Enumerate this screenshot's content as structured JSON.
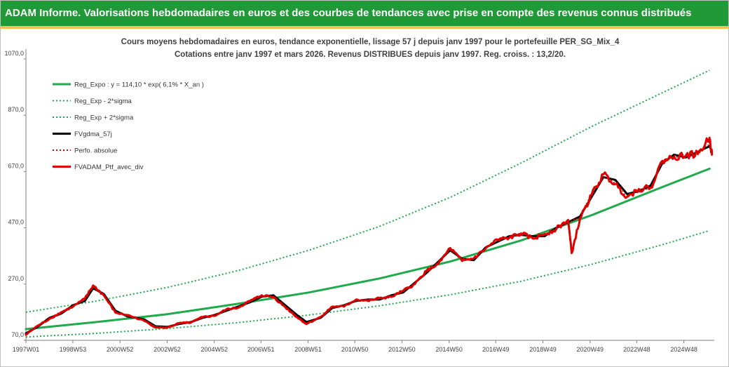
{
  "header": {
    "title": "ADAM Informe. Valorisations hebdomadaires en euros et des courbes de tendances avec prise en compte des revenus connus distribués"
  },
  "chart_data": {
    "type": "line",
    "title_line1": "Cours moyens hebdomadaires  en euros, tendance exponentielle, lissage 57 j depuis janv 1997 pour le portefeuille PER_SG_Mix_4",
    "title_line2": "Cotations  entre janv 1997 et mars 2026. Revenus DISTRIBUES depuis janv 1997. Reg. croiss. : 13,2/20.",
    "xlabel": "",
    "ylabel": "",
    "ylim": [
      70,
      1090
    ],
    "xlim": [
      1997.0,
      2026.2
    ],
    "y_ticks": [
      "70,0",
      "270,0",
      "470,0",
      "670,0",
      "870,0",
      "1070,0"
    ],
    "x_ticks": [
      {
        "label": "1997W01",
        "x": 1997.0
      },
      {
        "label": "1998W53",
        "x": 1998.99
      },
      {
        "label": "2000W52",
        "x": 2000.99
      },
      {
        "label": "2002W52",
        "x": 2002.99
      },
      {
        "label": "2004W52",
        "x": 2004.99
      },
      {
        "label": "2006W51",
        "x": 2006.97
      },
      {
        "label": "2008W51",
        "x": 2008.97
      },
      {
        "label": "2010W50",
        "x": 2010.95
      },
      {
        "label": "2012W50",
        "x": 2012.95
      },
      {
        "label": "2014W50",
        "x": 2014.95
      },
      {
        "label": "2016W49",
        "x": 2016.93
      },
      {
        "label": "2018W49",
        "x": 2018.93
      },
      {
        "label": "2020W49",
        "x": 2020.93
      },
      {
        "label": "2022W48",
        "x": 2022.91
      },
      {
        "label": "2024W48",
        "x": 2024.91
      }
    ],
    "legend_position": "top-left",
    "grid": false,
    "series": [
      {
        "name": "Reg_Expo : y = 114,10 * exp( 6,1% *  X_an )",
        "color": "#1faa4b",
        "style": "solid",
        "width": 3,
        "x": [
          1997.0,
          2000.0,
          2003.0,
          2006.0,
          2009.0,
          2012.0,
          2015.0,
          2018.0,
          2021.0,
          2024.0,
          2026.0
        ],
        "values": [
          110,
          135,
          163,
          200,
          240,
          290,
          350,
          425,
          515,
          615,
          680
        ]
      },
      {
        "name": "Reg_Exp - 2*sigma",
        "color": "#1faa4b",
        "style": "dotted",
        "width": 2,
        "x": [
          1997.0,
          2000.0,
          2003.0,
          2006.0,
          2009.0,
          2012.0,
          2015.0,
          2018.0,
          2021.0,
          2024.0,
          2026.0
        ],
        "values": [
          82,
          95,
          112,
          133,
          160,
          193,
          232,
          280,
          340,
          410,
          460
        ]
      },
      {
        "name": "Reg_Exp + 2*sigma",
        "color": "#1faa4b",
        "style": "dotted",
        "width": 2,
        "x": [
          1997.0,
          2000.0,
          2003.0,
          2006.0,
          2009.0,
          2012.0,
          2015.0,
          2018.0,
          2021.0,
          2024.0,
          2026.0
        ],
        "values": [
          170,
          210,
          258,
          318,
          390,
          475,
          578,
          700,
          830,
          950,
          1030
        ]
      },
      {
        "name": "FVgdma_57j",
        "color": "#000000",
        "style": "solid",
        "width": 3,
        "x": [
          1997.0,
          1997.5,
          1998.0,
          1998.5,
          1999.0,
          1999.5,
          1999.85,
          2000.3,
          2000.8,
          2001.3,
          2002.0,
          2002.5,
          2003.0,
          2003.5,
          2004.0,
          2004.5,
          2005.0,
          2005.5,
          2006.0,
          2006.5,
          2007.0,
          2007.5,
          2008.0,
          2008.5,
          2008.9,
          2009.5,
          2010.0,
          2010.5,
          2011.0,
          2011.5,
          2012.0,
          2012.5,
          2013.0,
          2013.5,
          2014.0,
          2014.5,
          2015.0,
          2015.5,
          2016.0,
          2016.5,
          2017.0,
          2017.5,
          2018.0,
          2018.5,
          2019.0,
          2019.5,
          2020.0,
          2020.5,
          2021.0,
          2021.5,
          2022.0,
          2022.5,
          2023.0,
          2023.5,
          2024.0,
          2024.5,
          2025.0,
          2025.5,
          2026.0,
          2026.1
        ],
        "values": [
          95,
          118,
          150,
          165,
          195,
          210,
          255,
          235,
          175,
          155,
          145,
          120,
          118,
          128,
          135,
          150,
          160,
          175,
          190,
          205,
          225,
          230,
          195,
          160,
          135,
          150,
          185,
          195,
          210,
          215,
          215,
          230,
          240,
          275,
          310,
          350,
          390,
          360,
          355,
          400,
          420,
          440,
          445,
          440,
          440,
          470,
          490,
          510,
          580,
          650,
          640,
          590,
          600,
          620,
          700,
          730,
          720,
          740,
          760,
          740
        ]
      },
      {
        "name": "Perfo. absolue",
        "color": "#e00000",
        "style": "dotted",
        "width": 2,
        "x": [
          1997.0,
          1997.5,
          1998.0,
          1998.5,
          1999.0,
          1999.5,
          1999.85,
          2000.3,
          2000.8,
          2001.3,
          2002.0,
          2002.5,
          2003.0,
          2003.5,
          2004.0,
          2004.5,
          2005.0,
          2005.5,
          2006.0,
          2006.5,
          2007.0,
          2007.5,
          2008.0,
          2008.5,
          2008.9,
          2009.5,
          2010.0,
          2010.5,
          2011.0,
          2011.5,
          2012.0,
          2012.5,
          2013.0,
          2013.5,
          2014.0,
          2014.5,
          2015.0,
          2015.5,
          2016.0,
          2016.5,
          2017.0,
          2017.5,
          2018.0,
          2018.5,
          2019.0,
          2019.5,
          2020.0,
          2020.5,
          2021.0,
          2021.5,
          2022.0,
          2022.5,
          2023.0,
          2023.5,
          2024.0,
          2024.5,
          2025.0,
          2025.5,
          2026.0,
          2026.1
        ],
        "values": [
          92,
          120,
          148,
          168,
          192,
          215,
          262,
          232,
          170,
          158,
          142,
          118,
          116,
          130,
          134,
          152,
          158,
          178,
          188,
          208,
          228,
          226,
          190,
          155,
          130,
          152,
          188,
          192,
          213,
          212,
          218,
          226,
          244,
          272,
          315,
          345,
          395,
          355,
          360,
          398,
          425,
          436,
          448,
          436,
          445,
          468,
          495,
          505,
          585,
          655,
          630,
          585,
          605,
          615,
          705,
          725,
          725,
          735,
          775,
          735
        ]
      },
      {
        "name": "FVADAM_Ptf_avec_div",
        "color": "#e00000",
        "style": "solid",
        "width": 3,
        "x": [
          1997.0,
          1997.5,
          1998.0,
          1998.5,
          1999.0,
          1999.5,
          1999.85,
          2000.3,
          2000.8,
          2001.3,
          2002.0,
          2002.5,
          2003.0,
          2003.5,
          2004.0,
          2004.5,
          2005.0,
          2005.5,
          2006.0,
          2006.5,
          2007.0,
          2007.5,
          2008.0,
          2008.5,
          2008.9,
          2009.5,
          2010.0,
          2010.5,
          2011.0,
          2011.5,
          2012.0,
          2012.5,
          2013.0,
          2013.5,
          2014.0,
          2014.5,
          2015.0,
          2015.5,
          2016.0,
          2016.5,
          2017.0,
          2017.5,
          2018.0,
          2018.5,
          2019.0,
          2019.5,
          2020.0,
          2020.15,
          2020.5,
          2021.0,
          2021.5,
          2022.0,
          2022.5,
          2023.0,
          2023.5,
          2024.0,
          2024.5,
          2025.0,
          2025.5,
          2026.0,
          2026.1
        ],
        "values": [
          90,
          122,
          146,
          170,
          190,
          218,
          265,
          230,
          168,
          160,
          140,
          116,
          115,
          131,
          133,
          153,
          157,
          180,
          186,
          210,
          230,
          224,
          188,
          152,
          128,
          153,
          190,
          190,
          215,
          210,
          220,
          224,
          246,
          270,
          318,
          342,
          398,
          352,
          362,
          396,
          428,
          434,
          450,
          432,
          448,
          466,
          498,
          380,
          500,
          588,
          660,
          625,
          580,
          608,
          612,
          708,
          722,
          728,
          732,
          790,
          730
        ]
      }
    ]
  }
}
